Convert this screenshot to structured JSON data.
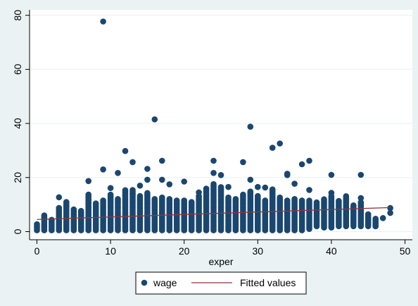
{
  "chart_data": {
    "type": "scatter",
    "title": "",
    "xlabel": "exper",
    "ylabel": "",
    "xlim": [
      -1,
      51
    ],
    "ylim": [
      -3,
      82
    ],
    "x_ticks": [
      0,
      10,
      20,
      30,
      40,
      50
    ],
    "y_ticks": [
      0,
      20,
      40,
      60,
      80
    ],
    "grid": "horizontal",
    "legend_position": "bottom",
    "colors": {
      "background": "#eaf2f3",
      "plot_area": "#ffffff",
      "grid": "#eaf2f3",
      "points": "#1a476f",
      "fit_line": "#90353b"
    },
    "legend": [
      {
        "label": "wage",
        "marker": "circle",
        "color": "#1a476f"
      },
      {
        "label": "Fitted values",
        "marker": "line",
        "color": "#90353b"
      }
    ],
    "series": [
      {
        "name": "wage",
        "kind": "scatter",
        "notable_points": [
          [
            9,
            77.7
          ],
          [
            16,
            41.5
          ],
          [
            29,
            38.8
          ],
          [
            33,
            32.6
          ],
          [
            32,
            31.0
          ],
          [
            12,
            29.8
          ],
          [
            13,
            25.7
          ],
          [
            17,
            26.2
          ],
          [
            24,
            26.2
          ],
          [
            28,
            25.7
          ],
          [
            36,
            24.9
          ],
          [
            37,
            26.2
          ],
          [
            9,
            23.0
          ],
          [
            15,
            23.2
          ],
          [
            11,
            21.7
          ],
          [
            24,
            21.7
          ],
          [
            25,
            20.9
          ],
          [
            34,
            21.4
          ],
          [
            34,
            20.9
          ],
          [
            40,
            21.0
          ],
          [
            44,
            21.0
          ],
          [
            7,
            18.7
          ],
          [
            15,
            19.2
          ],
          [
            17,
            19.2
          ],
          [
            18,
            17.5
          ],
          [
            20,
            18.5
          ],
          [
            26,
            16.5
          ],
          [
            29,
            19.2
          ],
          [
            30,
            16.5
          ],
          [
            31,
            16.3
          ],
          [
            35,
            17.7
          ],
          [
            3,
            12.7
          ],
          [
            12,
            15.3
          ],
          [
            13,
            14.0
          ],
          [
            10,
            16.1
          ],
          [
            14,
            17.0
          ],
          [
            22,
            14.5
          ],
          [
            23,
            15.8
          ],
          [
            25,
            15.5
          ],
          [
            32,
            15.6
          ],
          [
            37,
            15.4
          ],
          [
            40,
            14.3
          ],
          [
            42,
            13.1
          ],
          [
            44,
            12.4
          ],
          [
            48,
            8.7
          ],
          [
            48,
            6.9
          ],
          [
            47,
            5.0
          ],
          [
            46,
            2.0
          ],
          [
            5,
            3.5
          ],
          [
            8,
            2.5
          ]
        ],
        "bands": [
          [
            0,
            0.5,
            3.0
          ],
          [
            1,
            0.5,
            6.0
          ],
          [
            2,
            0.5,
            4.5
          ],
          [
            3,
            0.5,
            9.0
          ],
          [
            4,
            0.5,
            11.0
          ],
          [
            5,
            0.5,
            8.5
          ],
          [
            6,
            0.5,
            8.0
          ],
          [
            7,
            0.5,
            14.0
          ],
          [
            8,
            0.5,
            10.5
          ],
          [
            9,
            0.5,
            12.0
          ],
          [
            10,
            0.5,
            14.0
          ],
          [
            11,
            0.5,
            12.5
          ],
          [
            12,
            0.5,
            15.0
          ],
          [
            13,
            0.5,
            15.5
          ],
          [
            14,
            0.5,
            13.5
          ],
          [
            15,
            0.5,
            14.5
          ],
          [
            16,
            0.5,
            12.5
          ],
          [
            17,
            0.5,
            13.0
          ],
          [
            18,
            0.5,
            12.5
          ],
          [
            19,
            0.5,
            11.5
          ],
          [
            20,
            0.5,
            12.0
          ],
          [
            21,
            0.5,
            11.0
          ],
          [
            22,
            0.5,
            13.5
          ],
          [
            23,
            0.5,
            16.0
          ],
          [
            24,
            0.5,
            18.0
          ],
          [
            25,
            0.5,
            16.5
          ],
          [
            26,
            0.5,
            13.0
          ],
          [
            27,
            0.5,
            12.5
          ],
          [
            28,
            0.5,
            14.0
          ],
          [
            29,
            0.5,
            15.0
          ],
          [
            30,
            0.5,
            13.5
          ],
          [
            31,
            0.5,
            12.0
          ],
          [
            32,
            0.5,
            15.5
          ],
          [
            33,
            0.5,
            13.0
          ],
          [
            34,
            0.5,
            12.0
          ],
          [
            35,
            0.5,
            12.5
          ],
          [
            36,
            0.5,
            11.5
          ],
          [
            37,
            1.0,
            11.5
          ],
          [
            38,
            2.0,
            11.0
          ],
          [
            39,
            1.5,
            12.0
          ],
          [
            40,
            1.5,
            13.5
          ],
          [
            41,
            2.0,
            11.5
          ],
          [
            42,
            2.0,
            12.5
          ],
          [
            43,
            2.0,
            10.0
          ],
          [
            44,
            2.0,
            11.0
          ],
          [
            45,
            2.0,
            6.5
          ],
          [
            46,
            2.0,
            5.0
          ]
        ]
      },
      {
        "name": "Fitted values",
        "kind": "line",
        "x": [
          0,
          48
        ],
        "y": [
          4.5,
          8.9
        ]
      }
    ]
  }
}
